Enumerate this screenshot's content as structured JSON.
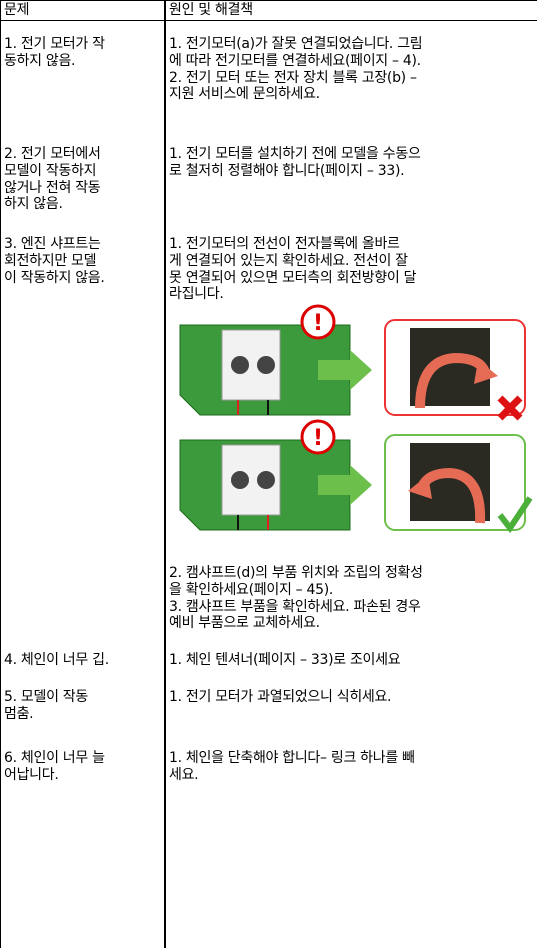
{
  "header": {
    "problem": "문제",
    "solution": "원인 및 해결책"
  },
  "rows": [
    {
      "problem": [
        "1. 전기 모터가 작",
        "동하지 않음."
      ],
      "solution": [
        "1. 전기모터(a)가 잘못 연결되었습니다. 그림",
        "에 따라 전기모터를 연결하세요(페이지 – 4).",
        "2. 전기 모터 또는 전자 장치 블록 고장(b) –",
        "지원 서비스에 문의하세요."
      ]
    },
    {
      "problem": [
        "2. 전기 모터에서",
        "모델이 작동하지",
        "않거나 전혀 작동",
        "하지 않음."
      ],
      "solution": [
        "1. 전기 모터를 설치하기 전에 모델을 수동으",
        "로 철저히 정렬해야 합니다(페이지 – 33)."
      ]
    },
    {
      "problem": [
        "3. 엔진 샤프트는",
        "회전하지만 모델",
        "이 작동하지 않음."
      ],
      "solution": [
        "1. 전기모터의 전선이 전자블록에 올바르",
        "게 연결되어 있는지 확인하세요. 전선이 잘",
        "못 연결되어 있으면 모터측의 회전방향이 달",
        "라집니다."
      ],
      "solution_more": [
        "2. 캠샤프트(d)의 부품 위치와 조립의 정확성",
        "을 확인하세요(페이지 – 45).",
        "3. 캠샤프트 부품을 확인하세요. 파손된 경우",
        "예비 부품으로 교체하세요."
      ]
    },
    {
      "problem": [
        "4. 체인이 너무 깁."
      ],
      "solution": [
        "1. 체인 텐셔너(페이지 – 33)로 조이세요"
      ]
    },
    {
      "problem": [
        "5. 모델이 작동",
        "멈춤."
      ],
      "solution": [
        "1. 전기 모터가 과열되었으니 식히세요."
      ]
    },
    {
      "problem": [
        "6. 체인이 너무 늘",
        "어납니다."
      ],
      "solution": [
        "1. 체인을 단축해야 합니다– 링크 하나를 빼",
        "세요."
      ]
    }
  ]
}
